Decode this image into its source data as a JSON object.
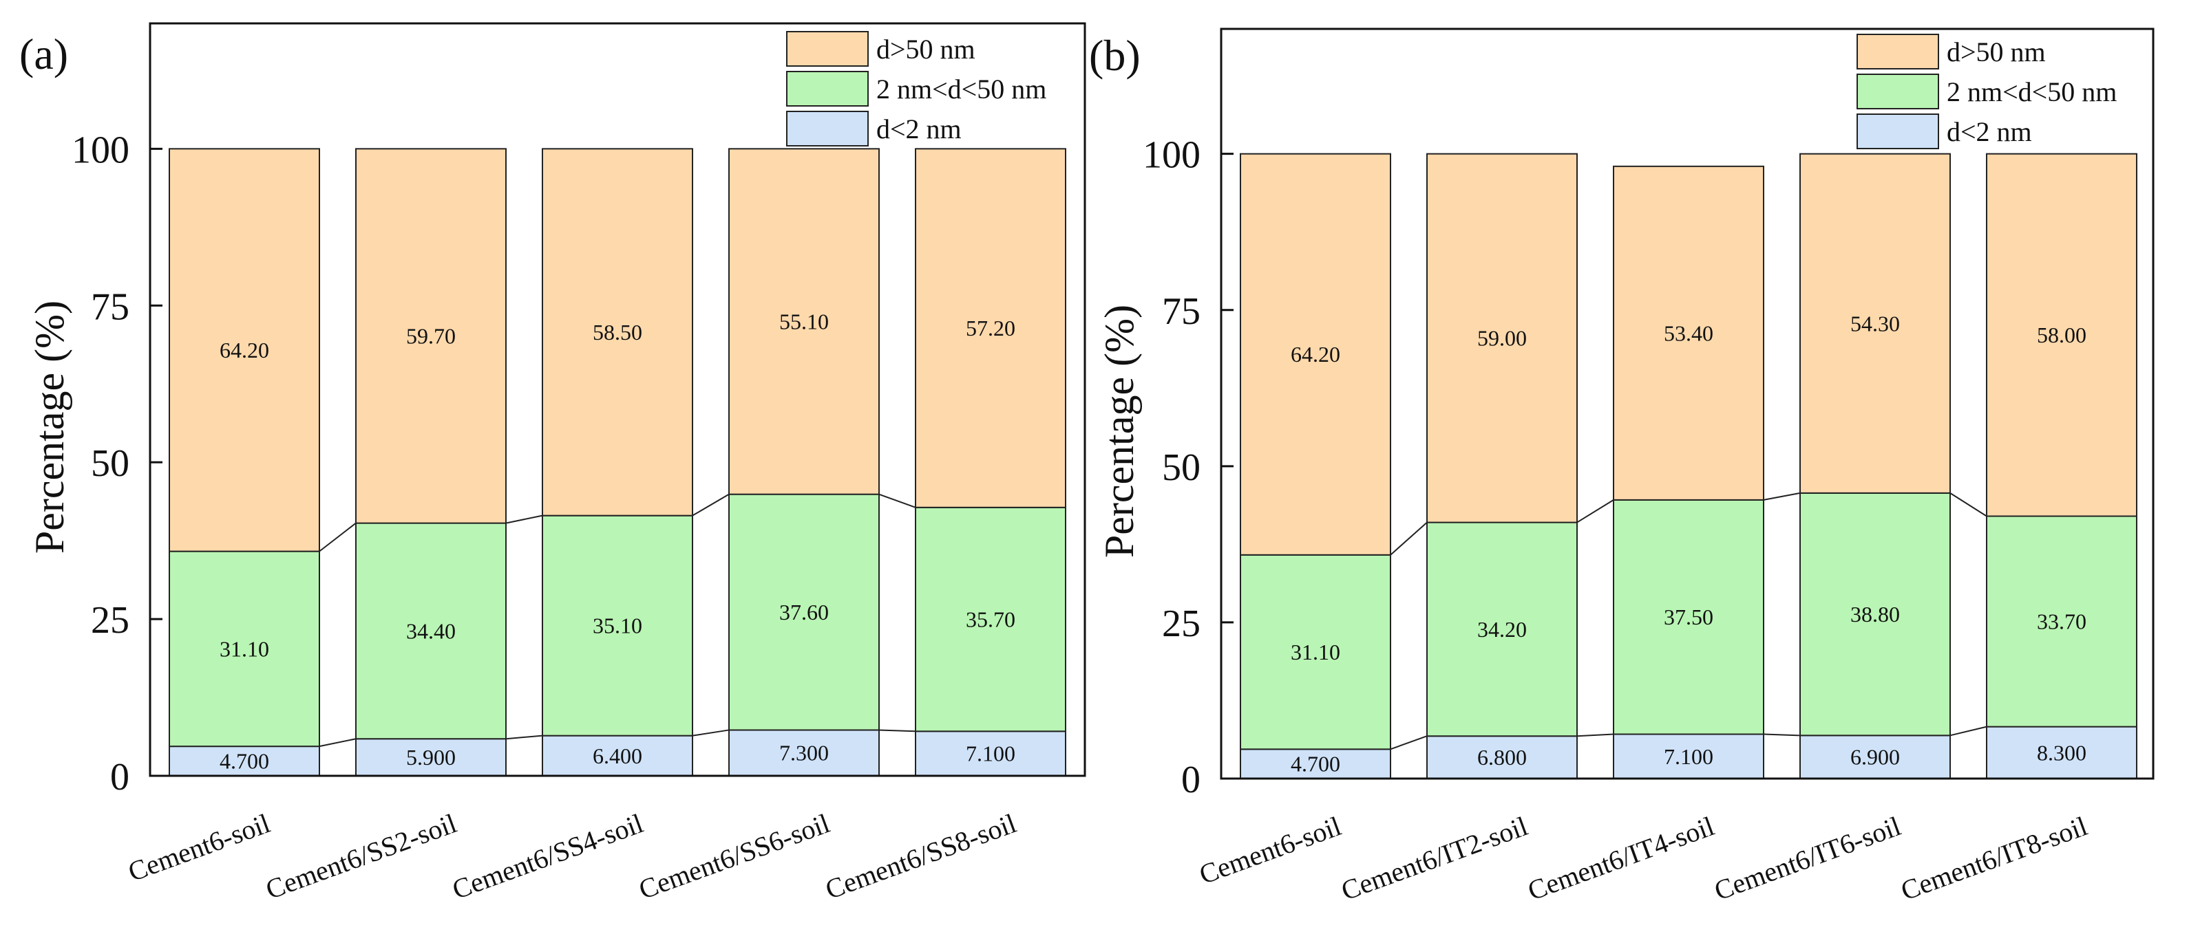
{
  "chart_data": [
    {
      "type": "bar",
      "stacked": true,
      "panel_label": "(a)",
      "ylabel": "Percentage (%)",
      "ylim": [
        0,
        120
      ],
      "yticks": [
        "0",
        "25",
        "50",
        "75",
        "100"
      ],
      "categories": [
        "Cement6-soil",
        "Cement6/SS2-soil",
        "Cement6/SS4-soil",
        "Cement6/SS6-soil",
        "Cement6/SS8-soil"
      ],
      "series": [
        {
          "name": "d<2 nm",
          "color": "#cfe2f8",
          "values": [
            4.7,
            5.9,
            6.4,
            7.3,
            7.1
          ],
          "labels": [
            "4.700",
            "5.900",
            "6.400",
            "7.300",
            "7.100"
          ]
        },
        {
          "name": "2 nm<d<50 nm",
          "color": "#b9f5b4",
          "values": [
            31.1,
            34.4,
            35.1,
            37.6,
            35.7
          ],
          "labels": [
            "31.10",
            "34.40",
            "35.10",
            "37.60",
            "35.70"
          ]
        },
        {
          "name": "d>50 nm",
          "color": "#fdd9ac",
          "values": [
            64.2,
            59.7,
            58.5,
            55.1,
            57.2
          ],
          "labels": [
            "64.20",
            "59.70",
            "58.50",
            "55.10",
            "57.20"
          ]
        }
      ],
      "legend": [
        "d>50 nm",
        "2 nm<d<50 nm",
        "d<2 nm"
      ],
      "legend_position": "top-right"
    },
    {
      "type": "bar",
      "stacked": true,
      "panel_label": "(b)",
      "ylabel": "Percentage (%)",
      "ylim": [
        0,
        120
      ],
      "yticks": [
        "0",
        "25",
        "50",
        "75",
        "100"
      ],
      "categories": [
        "Cement6-soil",
        "Cement6/IT2-soil",
        "Cement6/IT4-soil",
        "Cement6/IT6-soil",
        "Cement6/IT8-soil"
      ],
      "series": [
        {
          "name": "d<2 nm",
          "color": "#cfe2f8",
          "values": [
            4.7,
            6.8,
            7.1,
            6.9,
            8.3
          ],
          "labels": [
            "4.700",
            "6.800",
            "7.100",
            "6.900",
            "8.300"
          ]
        },
        {
          "name": "2 nm<d<50 nm",
          "color": "#b9f5b4",
          "values": [
            31.1,
            34.2,
            37.5,
            38.8,
            33.7
          ],
          "labels": [
            "31.10",
            "34.20",
            "37.50",
            "38.80",
            "33.70"
          ]
        },
        {
          "name": "d>50 nm",
          "color": "#fdd9ac",
          "values": [
            64.2,
            59.0,
            53.4,
            54.3,
            58.0
          ],
          "labels": [
            "64.20",
            "59.00",
            "53.40",
            "54.30",
            "58.00"
          ]
        }
      ],
      "legend": [
        "d>50 nm",
        "2 nm<d<50 nm",
        "d<2 nm"
      ],
      "legend_position": "top-right"
    }
  ]
}
